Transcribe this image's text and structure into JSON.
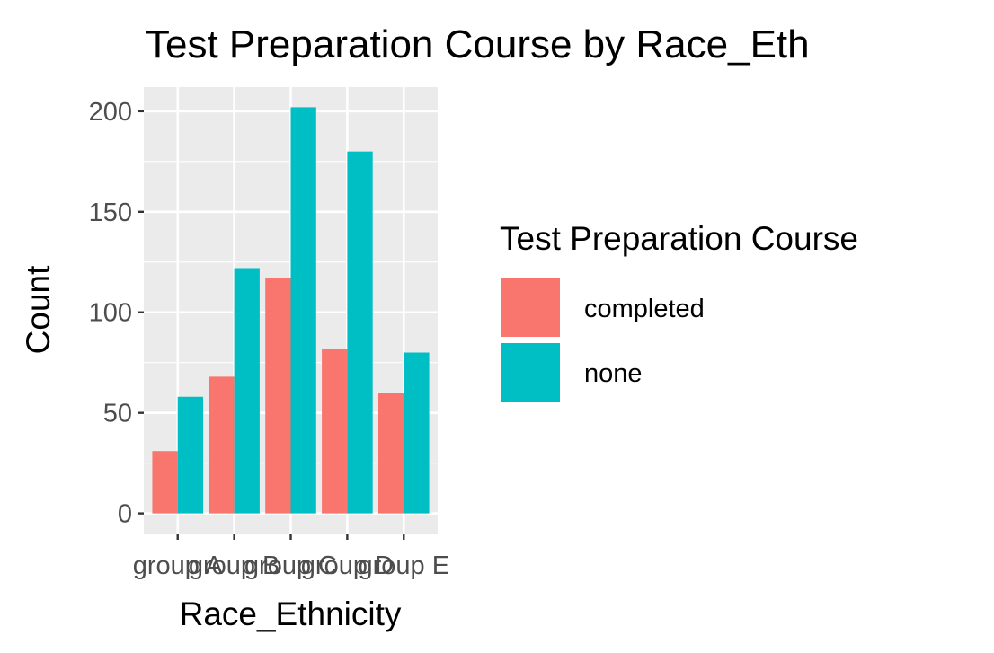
{
  "chart_data": {
    "type": "bar",
    "title": "Test Preparation Course by  Race_Eth",
    "xlabel": "Race_Ethnicity",
    "ylabel": "Count",
    "categories": [
      "group A",
      "group B",
      "group C",
      "group D",
      "group E"
    ],
    "series": [
      {
        "name": "completed",
        "values": [
          31,
          68,
          117,
          82,
          60
        ],
        "color": "#F8766D"
      },
      {
        "name": "none",
        "values": [
          58,
          122,
          202,
          180,
          80
        ],
        "color": "#00BFC4"
      }
    ],
    "ylim": [
      -10,
      212
    ],
    "yticks": [
      0,
      50,
      100,
      150,
      200
    ],
    "grid": true,
    "legend": {
      "title": "Test Preparation Course",
      "position": "right"
    },
    "panel_background": "#EBEBEB"
  }
}
